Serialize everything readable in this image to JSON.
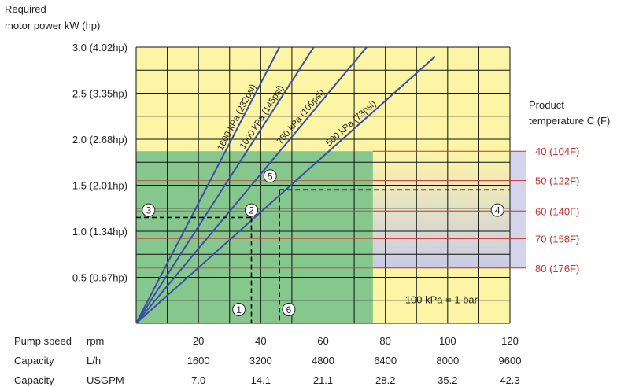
{
  "chart_data": {
    "type": "line",
    "title": "",
    "ylabel": "Required\nmotor power kW (hp)",
    "ylim": [
      0,
      3.0
    ],
    "xlim": [
      0,
      120
    ],
    "y_ticks": [
      {
        "value": 0.5,
        "label": "0.5 (0.67hp)"
      },
      {
        "value": 1.0,
        "label": "1.0 (1.34hp)"
      },
      {
        "value": 1.5,
        "label": "1.5 (2.01hp)"
      },
      {
        "value": 2.0,
        "label": "2.0 (2.68hp)"
      },
      {
        "value": 2.5,
        "label": "2.5 (3.35hp)"
      },
      {
        "value": 3.0,
        "label": "3.0 (4.02hp)"
      }
    ],
    "x_axes": [
      {
        "name": "Pump speed",
        "unit": "rpm",
        "values": [
          "20",
          "40",
          "60",
          "80",
          "100",
          "120"
        ]
      },
      {
        "name": "Capacity",
        "unit": "L/h",
        "values": [
          "1600",
          "3200",
          "4800",
          "6400",
          "8000",
          "9600"
        ]
      },
      {
        "name": "Capacity",
        "unit": "USGPM",
        "values": [
          "7.0",
          "14.1",
          "21.1",
          "28.2",
          "35.2",
          "42.3"
        ]
      }
    ],
    "x_tick_values": [
      20,
      40,
      60,
      80,
      100,
      120
    ],
    "series": [
      {
        "name": "1600 kPa (232psi)",
        "x": [
          0,
          46
        ],
        "y": [
          0,
          3.0
        ]
      },
      {
        "name": "1000 kPa (145psi)",
        "x": [
          0,
          57
        ],
        "y": [
          0,
          3.0
        ]
      },
      {
        "name": "750 kPa (109psi)",
        "x": [
          0,
          74
        ],
        "y": [
          0,
          3.0
        ]
      },
      {
        "name": "500 kPa (73psi)",
        "x": [
          0,
          96
        ],
        "y": [
          0,
          2.9
        ]
      }
    ],
    "temperature_axis": {
      "label": "Product\ntemperature C (F)",
      "lines": [
        {
          "label": "40 (104F)",
          "y": 1.87
        },
        {
          "label": "50 (122F)",
          "y": 1.55
        },
        {
          "label": "60 (140F)",
          "y": 1.22
        },
        {
          "label": "70 (158F)",
          "y": 0.92
        },
        {
          "label": "80 (176F)",
          "y": 0.6
        }
      ]
    },
    "operating_region": {
      "x_max": 76,
      "y_max": 1.87
    },
    "example_path": [
      {
        "from": [
          0,
          1.15
        ],
        "to": [
          37,
          1.15
        ]
      },
      {
        "from": [
          37,
          1.15
        ],
        "to": [
          37,
          0
        ]
      },
      {
        "from": [
          46,
          1.45
        ],
        "to": [
          120,
          1.45
        ]
      },
      {
        "from": [
          46,
          1.45
        ],
        "to": [
          46,
          0
        ]
      }
    ],
    "markers": [
      {
        "label": "1",
        "x": 33,
        "y": 0.15
      },
      {
        "label": "2",
        "x": 37,
        "y": 1.23
      },
      {
        "label": "3",
        "x": 4,
        "y": 1.23
      },
      {
        "label": "4",
        "x": 116,
        "y": 1.23
      },
      {
        "label": "5",
        "x": 43,
        "y": 1.6
      },
      {
        "label": "6",
        "x": 49,
        "y": 0.15
      }
    ],
    "annotation": "100 kPa = 1 bar",
    "grid": true,
    "colors": {
      "background": "#fdf5a6",
      "region": "#86c78e",
      "series_line": "#3a4fa3",
      "temperature_line": "#c8302e",
      "grid": "#111111",
      "dashed": "#000000"
    }
  }
}
